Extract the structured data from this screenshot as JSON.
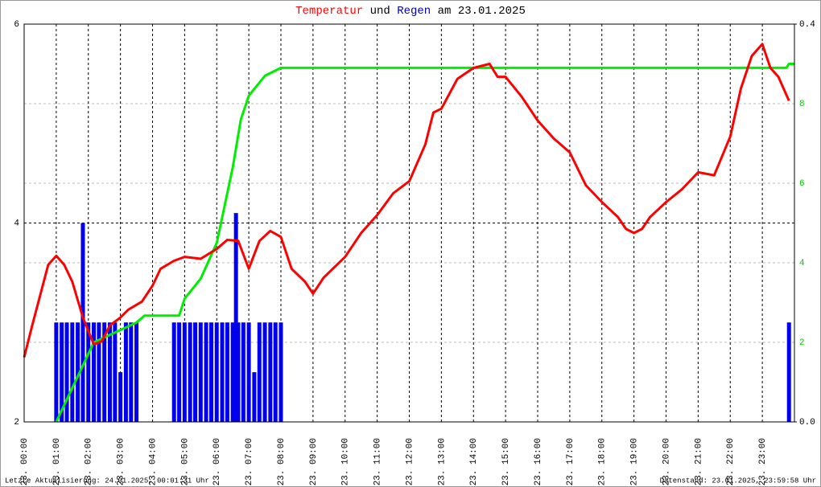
{
  "chart_data": {
    "type": "line",
    "title": [
      "Temperatur",
      "und",
      "Regen",
      "am 23.01.2025"
    ],
    "footer_left": "Letzte Aktualisierung: 24.01.2025, 00:01:31 Uhr",
    "footer_right": "Datenstand: 23.01.2025, 23:59:58 Uhr",
    "xlim": [
      0,
      24
    ],
    "xticks": [
      {
        "value": 0,
        "label": "23. 00:00"
      },
      {
        "value": 1,
        "label": "23. 01:00"
      },
      {
        "value": 2,
        "label": "23. 02:00"
      },
      {
        "value": 3,
        "label": "23. 03:00"
      },
      {
        "value": 4,
        "label": "23. 04:00"
      },
      {
        "value": 5,
        "label": "23. 05:00"
      },
      {
        "value": 6,
        "label": "23. 06:00"
      },
      {
        "value": 7,
        "label": "23. 07:00"
      },
      {
        "value": 8,
        "label": "23. 08:00"
      },
      {
        "value": 9,
        "label": "23. 09:00"
      },
      {
        "value": 10,
        "label": "23. 10:00"
      },
      {
        "value": 11,
        "label": "23. 11:00"
      },
      {
        "value": 12,
        "label": "23. 12:00"
      },
      {
        "value": 13,
        "label": "23. 13:00"
      },
      {
        "value": 14,
        "label": "23. 14:00"
      },
      {
        "value": 15,
        "label": "23. 15:00"
      },
      {
        "value": 16,
        "label": "23. 16:00"
      },
      {
        "value": 17,
        "label": "23. 17:00"
      },
      {
        "value": 18,
        "label": "23. 18:00"
      },
      {
        "value": 19,
        "label": "23. 19:00"
      },
      {
        "value": 20,
        "label": "23. 20:00"
      },
      {
        "value": 21,
        "label": "23. 21:00"
      },
      {
        "value": 22,
        "label": "23. 22:00"
      },
      {
        "value": 23,
        "label": "23. 23:00"
      }
    ],
    "ylim": [
      2,
      6
    ],
    "yticks": [
      2,
      4,
      6
    ],
    "y2lim": [
      0,
      10
    ],
    "y2ticks": [
      2,
      4,
      6,
      8
    ],
    "y3lim": [
      0,
      0.4
    ],
    "y3ticks": [
      {
        "value": 0,
        "label": "0.0"
      },
      {
        "value": 0.4,
        "label": "0.4"
      }
    ],
    "grid": true,
    "series": [
      {
        "color": "#ff0000",
        "axis": "y",
        "type": "line",
        "x": [
          0,
          0.25,
          0.75,
          1,
          1.25,
          1.5,
          1.83,
          2.17,
          2.42,
          2.67,
          3,
          3.25,
          3.67,
          4,
          4.25,
          4.67,
          5,
          5.5,
          6,
          6.33,
          6.67,
          7,
          7.33,
          7.67,
          8,
          8.33,
          8.75,
          9,
          9.33,
          10,
          10.5,
          11,
          11.5,
          12,
          12.5,
          12.75,
          13,
          13.5,
          14,
          14.5,
          14.75,
          15,
          15.5,
          16,
          16.5,
          17,
          17.5,
          18,
          18.5,
          18.75,
          19,
          19.25,
          19.5,
          20,
          20.5,
          21,
          21.5,
          22,
          22.33,
          22.67,
          23,
          23.25,
          23.5,
          23.83
        ],
        "values": [
          2.65,
          2.97,
          3.58,
          3.67,
          3.58,
          3.41,
          3.05,
          2.78,
          2.81,
          2.97,
          3.05,
          3.13,
          3.21,
          3.37,
          3.54,
          3.62,
          3.66,
          3.64,
          3.74,
          3.83,
          3.82,
          3.54,
          3.82,
          3.92,
          3.86,
          3.54,
          3.41,
          3.29,
          3.45,
          3.66,
          3.9,
          4.08,
          4.3,
          4.42,
          4.79,
          5.11,
          5.15,
          5.45,
          5.56,
          5.6,
          5.47,
          5.47,
          5.27,
          5.03,
          4.85,
          4.71,
          4.38,
          4.21,
          4.06,
          3.94,
          3.9,
          3.94,
          4.06,
          4.21,
          4.34,
          4.51,
          4.48,
          4.87,
          5.35,
          5.68,
          5.8,
          5.56,
          5.47,
          5.23
        ]
      },
      {
        "color": "#00ee00",
        "axis": "y2",
        "type": "line",
        "x": [
          1,
          2.17,
          3.5,
          3.75,
          4.83,
          5,
          5.5,
          6,
          6.5,
          6.75,
          7,
          7.5,
          8,
          23.75,
          23.83,
          24
        ],
        "values": [
          0,
          2,
          2.5,
          2.67,
          2.67,
          3.1,
          3.6,
          4.5,
          6.4,
          7.6,
          8.2,
          8.7,
          8.9,
          8.9,
          9,
          9
        ]
      },
      {
        "color": "#0000ee",
        "axis": "y3",
        "type": "bar",
        "x": [
          1,
          1.17,
          1.33,
          1.5,
          1.67,
          1.83,
          2,
          2.17,
          2.33,
          2.5,
          2.67,
          2.83,
          3,
          3.17,
          3.33,
          3.5,
          4.67,
          4.83,
          5,
          5.17,
          5.33,
          5.5,
          5.67,
          5.83,
          6,
          6.17,
          6.33,
          6.5,
          6.6,
          6.67,
          6.83,
          7,
          7.17,
          7.33,
          7.5,
          7.67,
          7.83,
          8,
          23.83
        ],
        "values": [
          0.1,
          0.1,
          0.1,
          0.1,
          0.1,
          0.2,
          0.1,
          0.1,
          0.1,
          0.1,
          0.1,
          0.1,
          0.05,
          0.1,
          0.1,
          0.1,
          0.1,
          0.1,
          0.1,
          0.1,
          0.1,
          0.1,
          0.1,
          0.1,
          0.1,
          0.1,
          0.1,
          0.1,
          0.21,
          0.1,
          0.1,
          0.1,
          0.05,
          0.1,
          0.1,
          0.1,
          0.1,
          0.1,
          0.1
        ]
      }
    ]
  }
}
